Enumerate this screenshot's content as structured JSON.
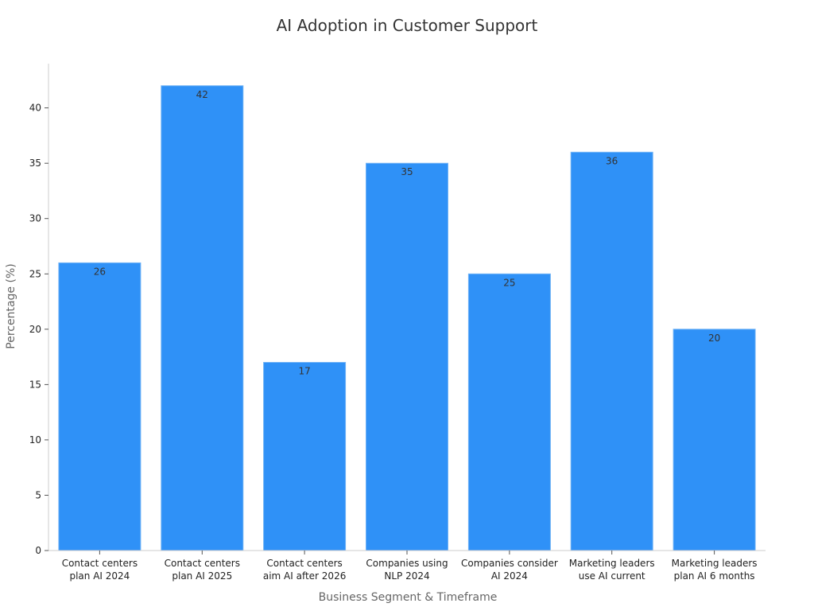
{
  "chart_data": {
    "type": "bar",
    "title": "AI Adoption in Customer Support",
    "xlabel": "Business Segment & Timeframe",
    "ylabel": "Percentage (%)",
    "categories": [
      [
        "Contact centers",
        "plan AI 2024"
      ],
      [
        "Contact centers",
        "plan AI 2025"
      ],
      [
        "Contact centers",
        "aim AI after 2026"
      ],
      [
        "Companies using",
        "NLP 2024"
      ],
      [
        "Companies consider",
        "AI 2024"
      ],
      [
        "Marketing leaders",
        "use AI current"
      ],
      [
        "Marketing leaders",
        "plan AI 6 months"
      ]
    ],
    "values": [
      26,
      42,
      17,
      35,
      25,
      36,
      20
    ],
    "ylim": [
      0,
      44
    ],
    "yticks": [
      0,
      5,
      10,
      15,
      20,
      25,
      30,
      35,
      40
    ],
    "grid": false,
    "legend": "none",
    "colors": {
      "bar": "#2f91f7",
      "bar_edge": "#6fb2f6",
      "axis": "#cccccc",
      "tick_text": "#222222",
      "axis_label": "#666666",
      "value_label": "#333333"
    }
  }
}
